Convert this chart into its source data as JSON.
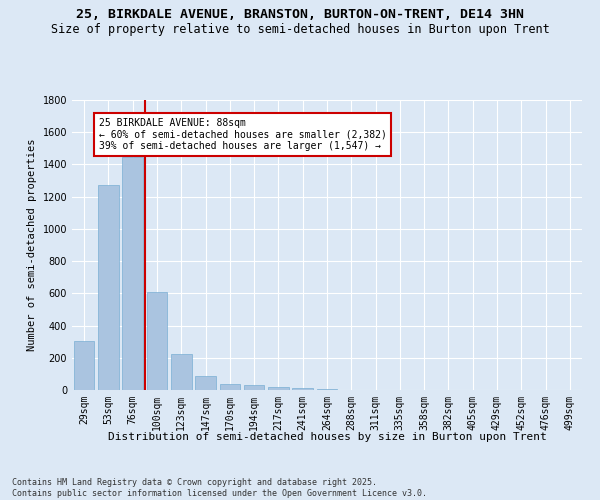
{
  "title": "25, BIRKDALE AVENUE, BRANSTON, BURTON-ON-TRENT, DE14 3HN",
  "subtitle": "Size of property relative to semi-detached houses in Burton upon Trent",
  "xlabel": "Distribution of semi-detached houses by size in Burton upon Trent",
  "ylabel": "Number of semi-detached properties",
  "categories": [
    "29sqm",
    "53sqm",
    "76sqm",
    "100sqm",
    "123sqm",
    "147sqm",
    "170sqm",
    "194sqm",
    "217sqm",
    "241sqm",
    "264sqm",
    "288sqm",
    "311sqm",
    "335sqm",
    "358sqm",
    "382sqm",
    "405sqm",
    "429sqm",
    "452sqm",
    "476sqm",
    "499sqm"
  ],
  "values": [
    305,
    1275,
    1445,
    610,
    225,
    88,
    38,
    30,
    20,
    12,
    5,
    0,
    0,
    0,
    0,
    0,
    0,
    0,
    0,
    0,
    0
  ],
  "bar_color": "#aac4e0",
  "bar_edge_color": "#7aafd4",
  "vline_x": 2.5,
  "vline_color": "#cc0000",
  "annotation_text": "25 BIRKDALE AVENUE: 88sqm\n← 60% of semi-detached houses are smaller (2,382)\n39% of semi-detached houses are larger (1,547) →",
  "annotation_box_color": "#ffffff",
  "annotation_box_edge": "#cc0000",
  "ylim": [
    0,
    1800
  ],
  "yticks": [
    0,
    200,
    400,
    600,
    800,
    1000,
    1200,
    1400,
    1600,
    1800
  ],
  "bg_color": "#dce8f5",
  "footer_text": "Contains HM Land Registry data © Crown copyright and database right 2025.\nContains public sector information licensed under the Open Government Licence v3.0.",
  "title_fontsize": 9.5,
  "subtitle_fontsize": 8.5,
  "xlabel_fontsize": 8,
  "ylabel_fontsize": 7.5,
  "annotation_fontsize": 7,
  "footer_fontsize": 6,
  "tick_fontsize": 7
}
